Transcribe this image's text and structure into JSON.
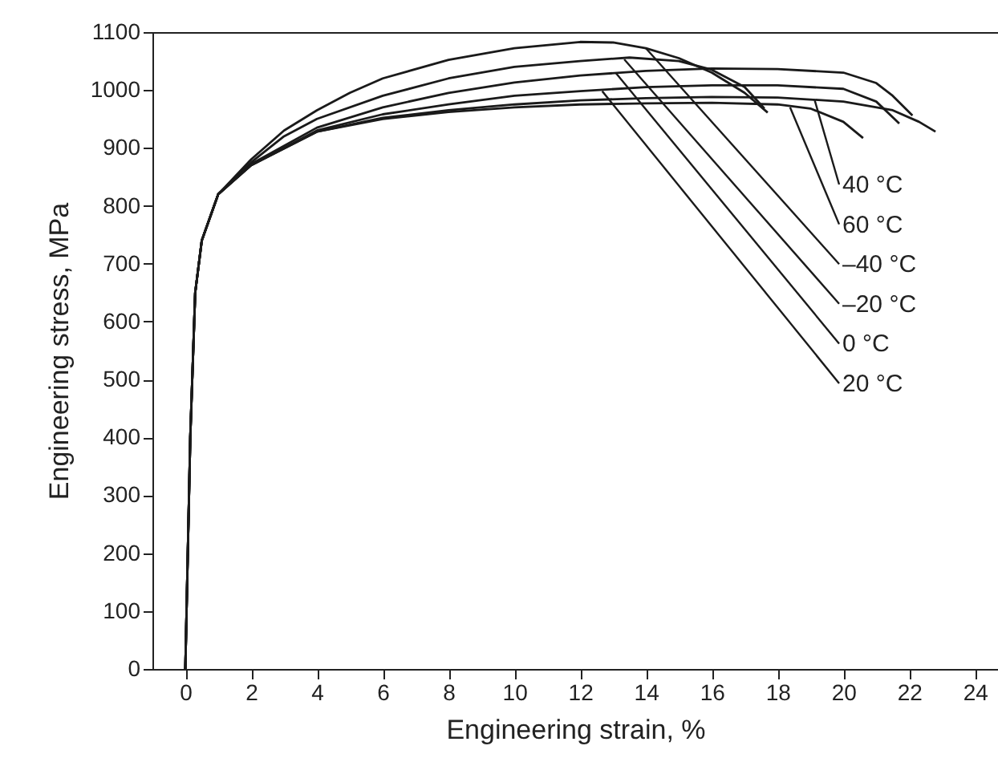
{
  "chart_data": {
    "type": "line",
    "xlabel": "Engineering strain, %",
    "ylabel": "Engineering stress, MPa",
    "xlim": [
      -1,
      24.7
    ],
    "ylim": [
      0,
      1100
    ],
    "xticks": [
      0,
      2,
      4,
      6,
      8,
      10,
      12,
      14,
      16,
      18,
      20,
      22,
      24
    ],
    "yticks": [
      0,
      100,
      200,
      300,
      400,
      500,
      600,
      700,
      800,
      900,
      1000,
      1100
    ],
    "grid": false,
    "legend": false,
    "marker": "none",
    "line_style": "solid",
    "series": [
      {
        "color": "#1a1a1a",
        "x": [
          0,
          0.15,
          0.3,
          0.5,
          1,
          2,
          3,
          4,
          5,
          6,
          8,
          10,
          12,
          13,
          14,
          15,
          16,
          17,
          17.7
        ],
        "values": [
          0,
          400,
          650,
          740,
          820,
          880,
          930,
          965,
          995,
          1020,
          1052,
          1072,
          1083,
          1082,
          1072,
          1055,
          1030,
          995,
          961
        ]
      },
      {
        "color": "#1a1a1a",
        "x": [
          0,
          0.15,
          0.3,
          0.5,
          1,
          2,
          3,
          4,
          6,
          8,
          10,
          12,
          13.5,
          15,
          16,
          17,
          17.6
        ],
        "values": [
          0,
          400,
          650,
          740,
          820,
          875,
          920,
          950,
          990,
          1020,
          1040,
          1050,
          1056,
          1050,
          1035,
          1005,
          968
        ]
      },
      {
        "color": "#1a1a1a",
        "x": [
          0,
          0.15,
          0.3,
          0.5,
          1,
          2,
          4,
          6,
          8,
          10,
          12,
          14,
          16,
          18,
          20,
          21,
          21.5,
          22.1
        ],
        "values": [
          0,
          400,
          650,
          740,
          820,
          872,
          935,
          970,
          995,
          1013,
          1025,
          1033,
          1037,
          1036,
          1030,
          1012,
          990,
          956
        ]
      },
      {
        "color": "#1a1a1a",
        "x": [
          0,
          0.15,
          0.3,
          0.5,
          1,
          2,
          4,
          6,
          8,
          10,
          12,
          14,
          16,
          18,
          20,
          21,
          21.7
        ],
        "values": [
          0,
          400,
          650,
          740,
          820,
          870,
          930,
          958,
          975,
          990,
          998,
          1005,
          1008,
          1008,
          1002,
          980,
          942
        ]
      },
      {
        "color": "#1a1a1a",
        "x": [
          0,
          0.15,
          0.3,
          0.5,
          1,
          2,
          4,
          6,
          8,
          10,
          12,
          14,
          16,
          18,
          20,
          21.5,
          22.3,
          22.8
        ],
        "values": [
          0,
          400,
          650,
          740,
          820,
          870,
          928,
          952,
          965,
          975,
          982,
          986,
          988,
          987,
          980,
          965,
          945,
          928
        ]
      },
      {
        "color": "#1a1a1a",
        "x": [
          0,
          0.15,
          0.3,
          0.5,
          1,
          2,
          4,
          6,
          8,
          10,
          12,
          14,
          16,
          18,
          19,
          20,
          20.6
        ],
        "values": [
          0,
          400,
          650,
          740,
          820,
          870,
          928,
          950,
          962,
          970,
          975,
          977,
          978,
          975,
          968,
          945,
          917
        ]
      }
    ],
    "annotations": [
      {
        "text": "40 °C",
        "x": 19.13,
        "y": 982
      },
      {
        "text": "60 °C",
        "x": 18.38,
        "y": 970
      },
      {
        "text": "–40 °C",
        "x": 14.0,
        "y": 1072
      },
      {
        "text": "–20 °C",
        "x": 13.34,
        "y": 1053
      },
      {
        "text": "0 °C",
        "x": 13.09,
        "y": 1029
      },
      {
        "text": "20 °C",
        "x": 12.67,
        "y": 998
      }
    ]
  }
}
